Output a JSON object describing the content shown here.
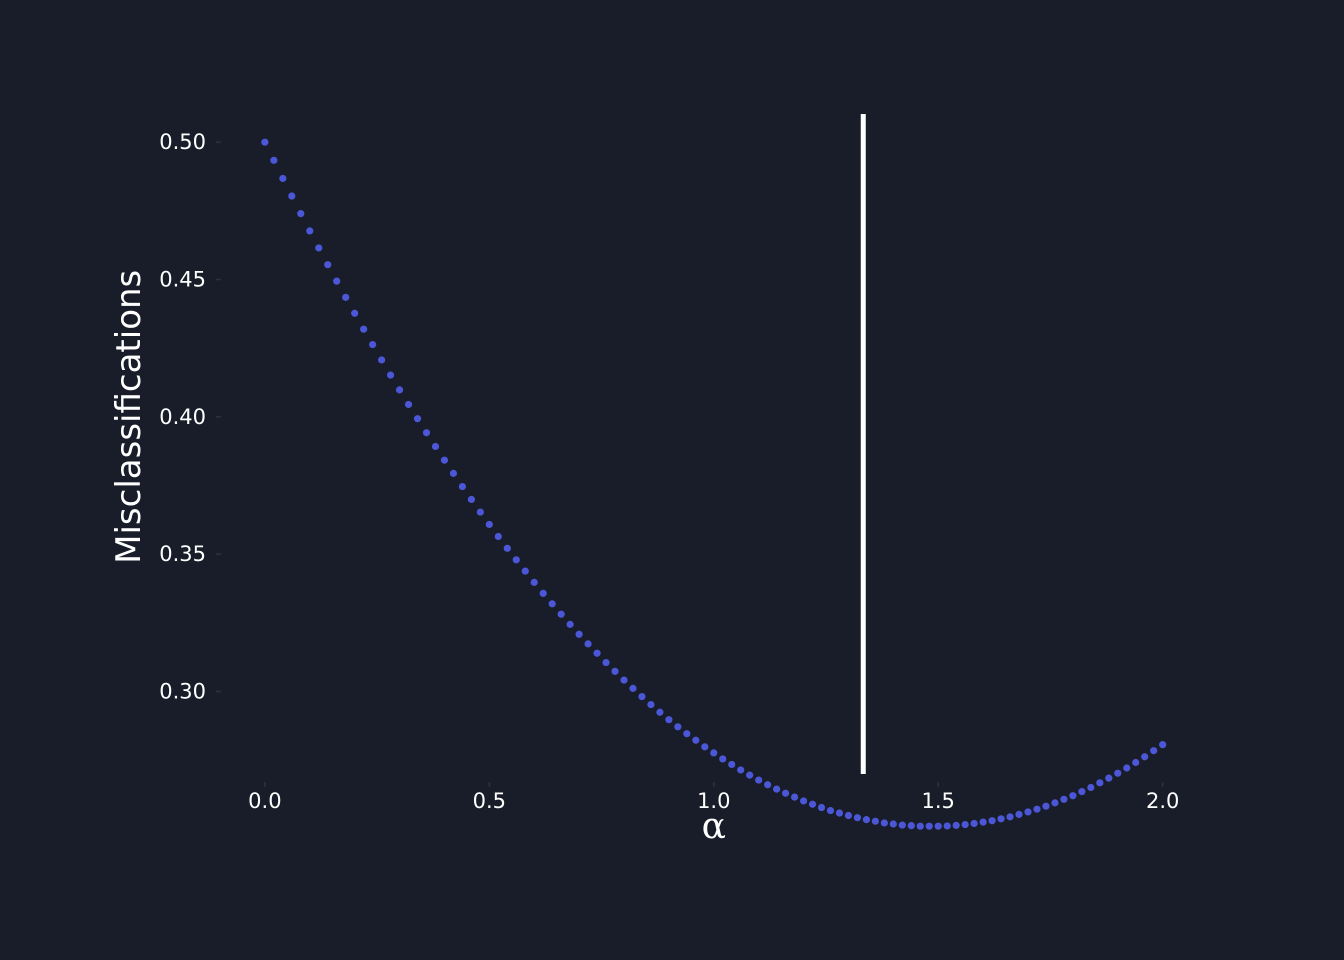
{
  "chart_data": {
    "type": "scatter",
    "title": "",
    "xlabel": "α",
    "ylabel": "Misclassifications",
    "xlim": [
      -0.1,
      2.15
    ],
    "ylim": [
      0.267,
      0.511
    ],
    "xticks": [
      0.0,
      0.5,
      1.0,
      1.5,
      2.0
    ],
    "xtick_labels": [
      "0.0",
      "0.5",
      "1.0",
      "1.5",
      "2.0"
    ],
    "yticks": [
      0.3,
      0.35,
      0.4,
      0.45,
      0.5
    ],
    "ytick_labels": [
      "0.30",
      "0.35",
      "0.40",
      "0.45",
      "0.50"
    ],
    "grid": false,
    "legend": false,
    "background_color": "#181d29",
    "point_color": "#4b57d6",
    "vline": {
      "x": 1.333,
      "color": "#ffffff"
    },
    "series": [
      {
        "x": [
          0.0,
          0.02,
          0.04,
          0.06,
          0.08,
          0.1,
          0.12,
          0.14,
          0.16,
          0.18,
          0.2,
          0.22,
          0.24,
          0.26,
          0.28,
          0.3,
          0.32,
          0.34,
          0.36,
          0.38,
          0.4,
          0.42,
          0.44,
          0.46,
          0.48,
          0.5,
          0.52,
          0.54,
          0.56,
          0.58,
          0.6,
          0.62,
          0.64,
          0.66,
          0.68,
          0.7,
          0.72,
          0.74,
          0.76,
          0.78,
          0.8,
          0.82,
          0.84,
          0.86,
          0.88,
          0.9,
          0.92,
          0.94,
          0.96,
          0.98,
          1.0,
          1.02,
          1.04,
          1.06,
          1.08,
          1.1,
          1.12,
          1.14,
          1.16,
          1.18,
          1.2,
          1.22,
          1.24,
          1.26,
          1.28,
          1.3,
          1.32,
          1.34,
          1.36,
          1.38,
          1.4,
          1.42,
          1.44,
          1.46,
          1.48,
          1.5,
          1.52,
          1.54,
          1.56,
          1.58,
          1.6,
          1.62,
          1.64,
          1.66,
          1.68,
          1.7,
          1.72,
          1.74,
          1.76,
          1.78,
          1.8,
          1.82,
          1.84,
          1.86,
          1.88,
          1.9,
          1.92,
          1.94,
          1.96,
          1.98,
          2.0
        ],
        "y": [
          0.5,
          0.4934,
          0.4868,
          0.4804,
          0.474,
          0.4677,
          0.4615,
          0.4554,
          0.4494,
          0.4435,
          0.4377,
          0.4319,
          0.4263,
          0.4207,
          0.4152,
          0.4098,
          0.4045,
          0.3993,
          0.3942,
          0.3892,
          0.3842,
          0.3794,
          0.3746,
          0.3699,
          0.3653,
          0.3608,
          0.3564,
          0.3521,
          0.3479,
          0.3438,
          0.3397,
          0.3357,
          0.3319,
          0.3281,
          0.3244,
          0.3208,
          0.3173,
          0.3139,
          0.3105,
          0.3073,
          0.3041,
          0.3011,
          0.2981,
          0.2952,
          0.2924,
          0.2897,
          0.2871,
          0.2846,
          0.2822,
          0.2798,
          0.2776,
          0.2754,
          0.2734,
          0.2714,
          0.2695,
          0.2677,
          0.266,
          0.2644,
          0.2629,
          0.2615,
          0.2601,
          0.2589,
          0.2577,
          0.2566,
          0.2557,
          0.2548,
          0.254,
          0.2533,
          0.2527,
          0.2521,
          0.2517,
          0.2513,
          0.2511,
          0.2509,
          0.2509,
          0.2509,
          0.251,
          0.2512,
          0.2515,
          0.2519,
          0.2524,
          0.2529,
          0.2536,
          0.2543,
          0.2552,
          0.2561,
          0.2571,
          0.2582,
          0.2594,
          0.2607,
          0.262,
          0.2635,
          0.265,
          0.2667,
          0.2684,
          0.2702,
          0.2721,
          0.2741,
          0.2762,
          0.2784,
          0.2806
        ]
      }
    ]
  }
}
